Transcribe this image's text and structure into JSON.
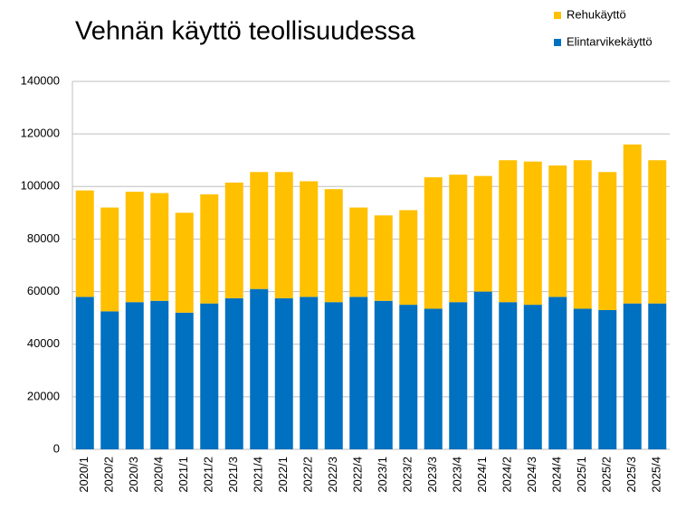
{
  "chart_data": {
    "type": "stacked_bar",
    "title": "Vehnän käyttö teollisuudessa",
    "categories": [
      "2020/1",
      "2020/2",
      "2020/3",
      "2020/4",
      "2021/1",
      "2021/2",
      "2021/3",
      "2021/4",
      "2022/1",
      "2022/2",
      "2022/3",
      "2022/4",
      "2023/1",
      "2023/2",
      "2023/3",
      "2023/4",
      "2024/1",
      "2024/2",
      "2024/3",
      "2024/4",
      "2025/1",
      "2025/2",
      "2025/3",
      "2025/4"
    ],
    "series": [
      {
        "name": "Elintarvikekäyttö",
        "color": "#0070c0",
        "values": [
          58000,
          52500,
          56000,
          56500,
          52000,
          55500,
          57500,
          61000,
          57500,
          58000,
          56000,
          58000,
          56500,
          55000,
          53500,
          56000,
          60000,
          56000,
          55000,
          58000,
          53500,
          53000,
          55500,
          55500
        ]
      },
      {
        "name": "Rehukäyttö",
        "color": "#ffc000",
        "values": [
          40500,
          39500,
          42000,
          41000,
          38000,
          41500,
          44000,
          44500,
          48000,
          44000,
          43000,
          34000,
          32500,
          36000,
          50000,
          48500,
          44000,
          54000,
          54500,
          50000,
          56500,
          52500,
          60500,
          54500
        ]
      }
    ],
    "ylim": [
      0,
      140000
    ],
    "yticks": [
      0,
      20000,
      40000,
      60000,
      80000,
      100000,
      120000,
      140000
    ],
    "grid": true,
    "legend": "top-right"
  }
}
